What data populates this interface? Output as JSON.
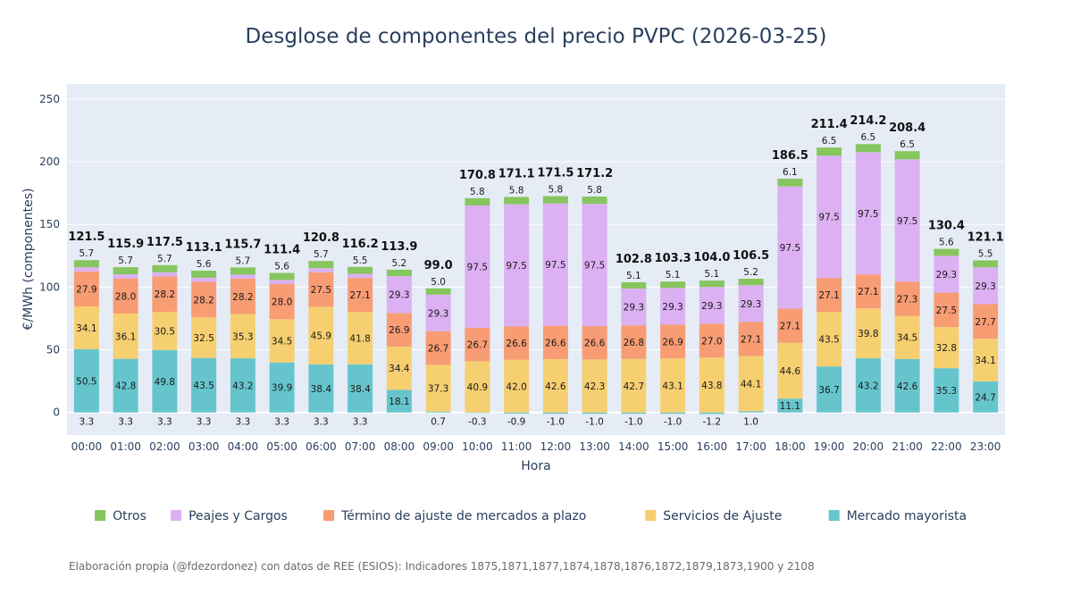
{
  "chart_data": {
    "type": "bar",
    "stacked": true,
    "title": "Desglose de componentes del precio PVPC (2026-03-25)",
    "xlabel": "Hora",
    "ylabel": "€/MWh (componentes)",
    "ylim": [
      -18,
      262
    ],
    "yticks": [
      0,
      50,
      100,
      150,
      200,
      250
    ],
    "categories": [
      "00:00",
      "01:00",
      "02:00",
      "03:00",
      "04:00",
      "05:00",
      "06:00",
      "07:00",
      "08:00",
      "09:00",
      "10:00",
      "11:00",
      "12:00",
      "13:00",
      "14:00",
      "15:00",
      "16:00",
      "17:00",
      "18:00",
      "19:00",
      "20:00",
      "21:00",
      "22:00",
      "23:00"
    ],
    "series": [
      {
        "name": "Mercado mayorista",
        "color": "#66c5cc",
        "values": [
          50.5,
          42.8,
          49.8,
          43.5,
          43.2,
          39.9,
          38.4,
          38.4,
          18.1,
          0.7,
          -0.3,
          -0.9,
          -1.0,
          -1.0,
          -1.0,
          -1.0,
          -1.2,
          1.0,
          11.1,
          36.7,
          43.2,
          42.6,
          35.3,
          24.7
        ]
      },
      {
        "name": "Servicios de Ajuste",
        "color": "#f6cf71",
        "values": [
          34.1,
          36.1,
          30.5,
          32.5,
          35.3,
          34.5,
          45.9,
          41.8,
          34.4,
          37.3,
          40.9,
          42.0,
          42.6,
          42.3,
          42.7,
          43.1,
          43.8,
          44.1,
          44.6,
          43.5,
          39.8,
          34.5,
          32.8,
          34.1
        ]
      },
      {
        "name": "Término de ajuste de mercados a plazo",
        "color": "#f89c74",
        "values": [
          27.9,
          28.0,
          28.2,
          28.2,
          28.2,
          28.0,
          27.5,
          27.1,
          26.9,
          26.7,
          26.7,
          26.6,
          26.6,
          26.6,
          26.8,
          26.9,
          27.0,
          27.1,
          27.1,
          27.1,
          27.1,
          27.3,
          27.5,
          27.7
        ]
      },
      {
        "name": "Peajes y Cargos",
        "color": "#dcb0f2",
        "values": [
          3.3,
          3.3,
          3.3,
          3.3,
          3.3,
          3.3,
          3.3,
          3.3,
          29.3,
          29.3,
          97.5,
          97.5,
          97.5,
          97.5,
          29.3,
          29.3,
          29.3,
          29.3,
          97.5,
          97.5,
          97.5,
          97.5,
          29.3,
          29.3
        ]
      },
      {
        "name": "Otros",
        "color": "#87c55f",
        "values": [
          5.7,
          5.7,
          5.7,
          5.6,
          5.7,
          5.6,
          5.7,
          5.5,
          5.2,
          5.0,
          5.8,
          5.8,
          5.8,
          5.8,
          5.1,
          5.1,
          5.1,
          5.2,
          6.1,
          6.5,
          6.5,
          6.5,
          5.6,
          5.5
        ]
      }
    ],
    "totals": [
      "121.5",
      "115.9",
      "117.5",
      "113.1",
      "115.7",
      "111.4",
      "120.8",
      "116.2",
      "113.9",
      "99.0",
      "170.8",
      "171.1",
      "171.5",
      "171.2",
      "102.8",
      "103.3",
      "104.0",
      "106.5",
      "186.5",
      "211.4",
      "214.2",
      "208.4",
      "130.4",
      "121.1"
    ],
    "legend_order": [
      "Otros",
      "Peajes y Cargos",
      "Término de ajuste de mercados a plazo",
      "Servicios de Ajuste",
      "Mercado mayorista"
    ],
    "legend_position": "bottom"
  },
  "source_note": "Elaboración propia (@fdezordonez) con datos de REE (ESIOS): Indicadores 1875,1871,1877,1874,1878,1876,1872,1879,1873,1900 y 2108"
}
